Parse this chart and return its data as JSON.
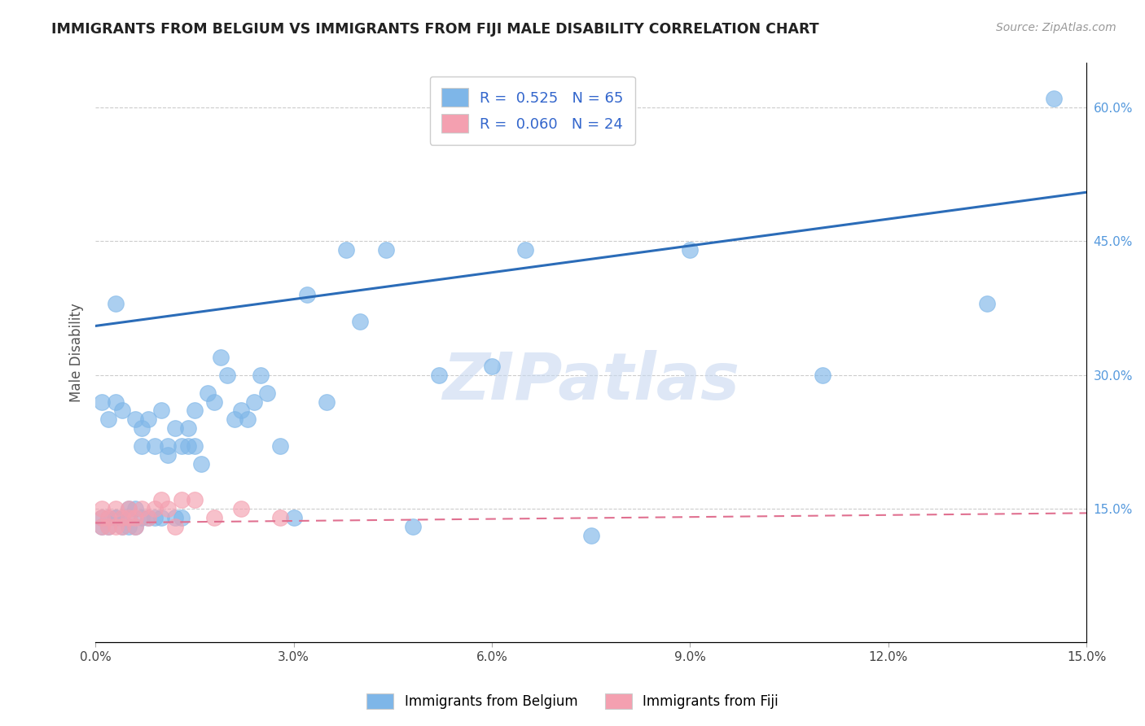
{
  "title": "IMMIGRANTS FROM BELGIUM VS IMMIGRANTS FROM FIJI MALE DISABILITY CORRELATION CHART",
  "source": "Source: ZipAtlas.com",
  "ylabel": "Male Disability",
  "legend_labels": [
    "Immigrants from Belgium",
    "Immigrants from Fiji"
  ],
  "r_belgium": 0.525,
  "n_belgium": 65,
  "r_fiji": 0.06,
  "n_fiji": 24,
  "xlim": [
    0.0,
    0.15
  ],
  "ylim": [
    0.0,
    0.65
  ],
  "xticks": [
    0.0,
    0.03,
    0.06,
    0.09,
    0.12,
    0.15
  ],
  "xtick_labels": [
    "0.0%",
    "3.0%",
    "6.0%",
    "9.0%",
    "12.0%",
    "15.0%"
  ],
  "yticks_right": [
    0.15,
    0.3,
    0.45,
    0.6
  ],
  "ytick_labels_right": [
    "15.0%",
    "30.0%",
    "45.0%",
    "60.0%"
  ],
  "color_belgium": "#7EB6E8",
  "color_fiji": "#F4A0B0",
  "line_color_belgium": "#2B6CB8",
  "line_color_fiji": "#E07090",
  "background_color": "#FFFFFF",
  "watermark": "ZIPatlas",
  "watermark_color": "#C8D8F0",
  "bel_line_x0": 0.0,
  "bel_line_y0": 0.355,
  "bel_line_x1": 0.15,
  "bel_line_y1": 0.505,
  "fij_line_x0": 0.0,
  "fij_line_y0": 0.134,
  "fij_line_x1": 0.15,
  "fij_line_y1": 0.145,
  "belgium_x": [
    0.001,
    0.001,
    0.001,
    0.002,
    0.002,
    0.002,
    0.003,
    0.003,
    0.003,
    0.003,
    0.004,
    0.004,
    0.004,
    0.005,
    0.005,
    0.005,
    0.006,
    0.006,
    0.006,
    0.007,
    0.007,
    0.007,
    0.008,
    0.008,
    0.009,
    0.009,
    0.01,
    0.01,
    0.011,
    0.011,
    0.012,
    0.012,
    0.013,
    0.013,
    0.014,
    0.014,
    0.015,
    0.015,
    0.016,
    0.017,
    0.018,
    0.019,
    0.02,
    0.021,
    0.022,
    0.023,
    0.024,
    0.025,
    0.026,
    0.028,
    0.03,
    0.032,
    0.035,
    0.038,
    0.04,
    0.044,
    0.048,
    0.052,
    0.06,
    0.065,
    0.075,
    0.09,
    0.11,
    0.135,
    0.145
  ],
  "belgium_y": [
    0.13,
    0.14,
    0.27,
    0.13,
    0.14,
    0.25,
    0.14,
    0.27,
    0.38,
    0.14,
    0.13,
    0.26,
    0.14,
    0.14,
    0.15,
    0.13,
    0.15,
    0.25,
    0.13,
    0.24,
    0.14,
    0.22,
    0.14,
    0.25,
    0.14,
    0.22,
    0.14,
    0.26,
    0.21,
    0.22,
    0.14,
    0.24,
    0.14,
    0.22,
    0.22,
    0.24,
    0.22,
    0.26,
    0.2,
    0.28,
    0.27,
    0.32,
    0.3,
    0.25,
    0.26,
    0.25,
    0.27,
    0.3,
    0.28,
    0.22,
    0.14,
    0.39,
    0.27,
    0.44,
    0.36,
    0.44,
    0.13,
    0.3,
    0.31,
    0.44,
    0.12,
    0.44,
    0.3,
    0.38,
    0.61
  ],
  "fiji_x": [
    0.001,
    0.001,
    0.001,
    0.002,
    0.002,
    0.003,
    0.003,
    0.004,
    0.004,
    0.005,
    0.005,
    0.006,
    0.006,
    0.007,
    0.008,
    0.009,
    0.01,
    0.011,
    0.012,
    0.013,
    0.015,
    0.018,
    0.022,
    0.028
  ],
  "fiji_y": [
    0.13,
    0.14,
    0.15,
    0.13,
    0.14,
    0.13,
    0.15,
    0.13,
    0.14,
    0.14,
    0.15,
    0.14,
    0.13,
    0.15,
    0.14,
    0.15,
    0.16,
    0.15,
    0.13,
    0.16,
    0.16,
    0.14,
    0.15,
    0.14
  ]
}
